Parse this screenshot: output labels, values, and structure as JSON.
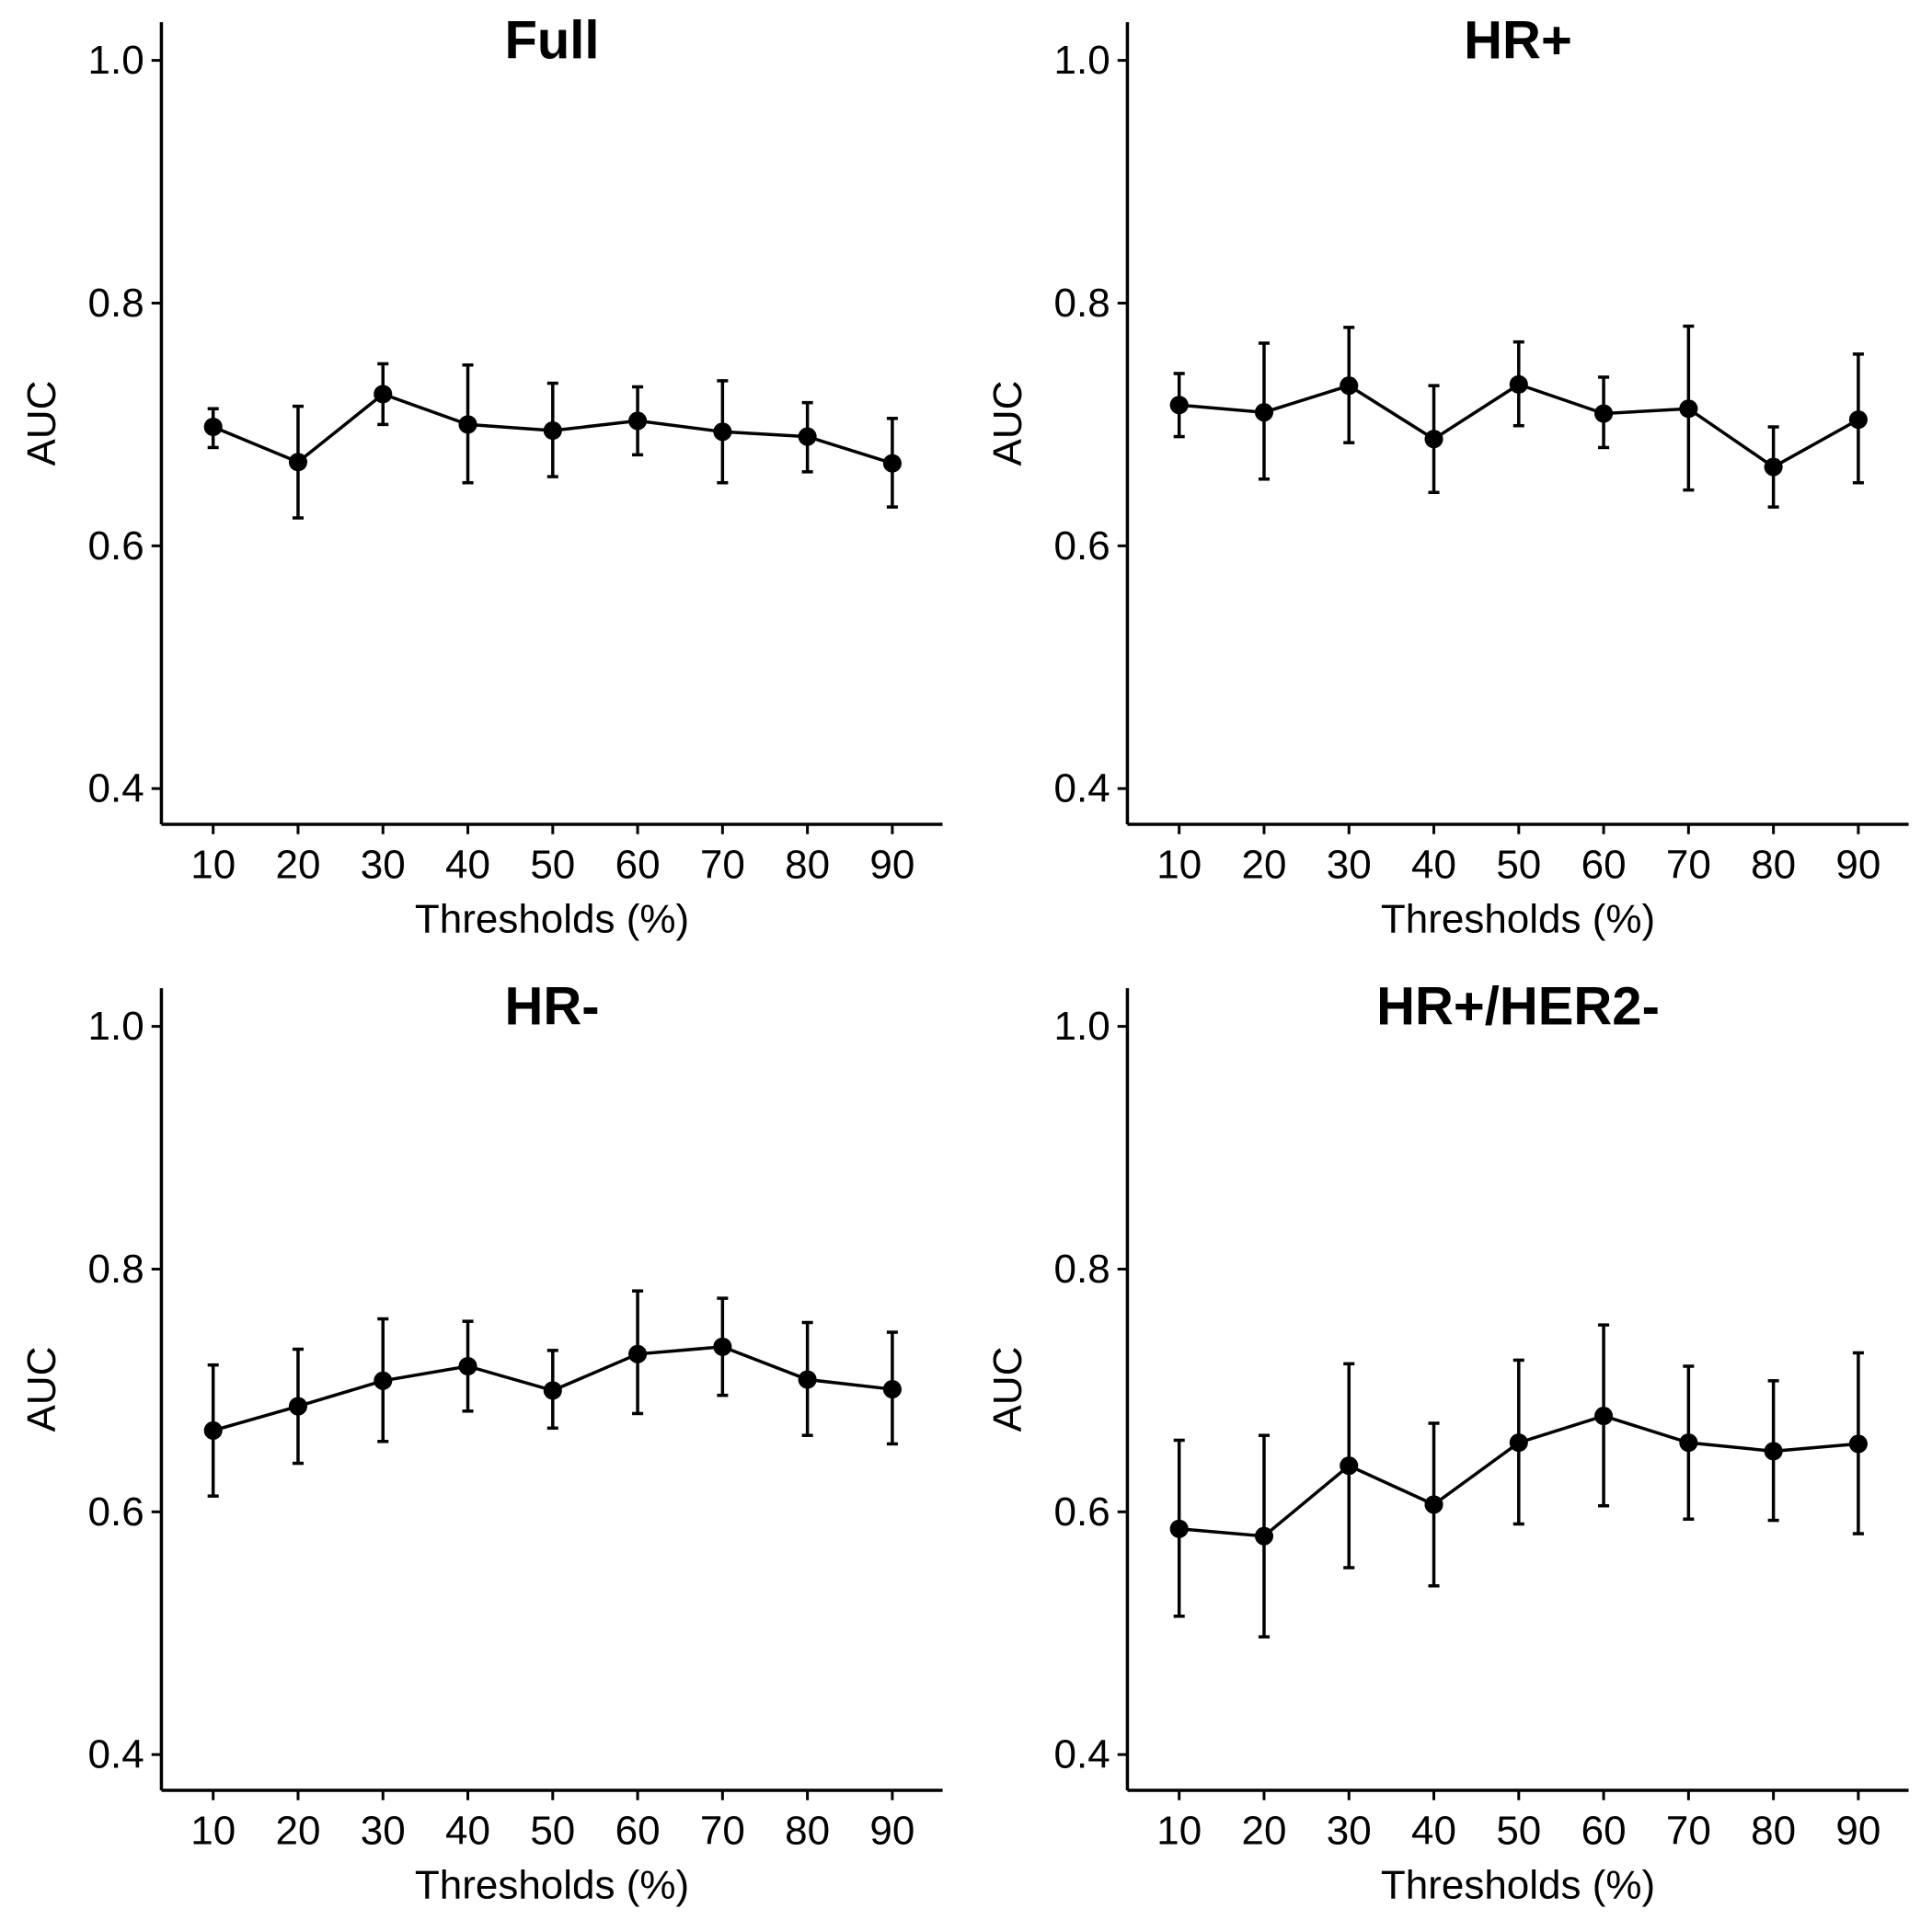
{
  "chart_data": [
    {
      "type": "line",
      "title": "Full",
      "xlabel": "Thresholds (%)",
      "ylabel": "AUC",
      "ylim": [
        0.4,
        1.0
      ],
      "yticks": [
        "0.4",
        "0.6",
        "0.8",
        "1.0"
      ],
      "categories": [
        "10",
        "20",
        "30",
        "40",
        "50",
        "60",
        "70",
        "80",
        "90"
      ],
      "values": [
        0.698,
        0.669,
        0.725,
        0.7,
        0.695,
        0.703,
        0.694,
        0.69,
        0.668
      ],
      "lower": [
        0.681,
        0.623,
        0.7,
        0.652,
        0.657,
        0.675,
        0.652,
        0.661,
        0.632
      ],
      "upper": [
        0.713,
        0.715,
        0.75,
        0.749,
        0.734,
        0.731,
        0.736,
        0.718,
        0.705
      ]
    },
    {
      "type": "line",
      "title": "HR+",
      "xlabel": "Thresholds (%)",
      "ylabel": "AUC",
      "ylim": [
        0.4,
        1.0
      ],
      "yticks": [
        "0.4",
        "0.6",
        "0.8",
        "1.0"
      ],
      "categories": [
        "10",
        "20",
        "30",
        "40",
        "50",
        "60",
        "70",
        "80",
        "90"
      ],
      "values": [
        0.716,
        0.71,
        0.732,
        0.688,
        0.733,
        0.709,
        0.713,
        0.665,
        0.704
      ],
      "lower": [
        0.69,
        0.655,
        0.685,
        0.644,
        0.699,
        0.681,
        0.646,
        0.632,
        0.652
      ],
      "upper": [
        0.742,
        0.767,
        0.78,
        0.732,
        0.768,
        0.739,
        0.781,
        0.698,
        0.758
      ]
    },
    {
      "type": "line",
      "title": "HR-",
      "xlabel": "Thresholds (%)",
      "ylabel": "AUC",
      "ylim": [
        0.4,
        1.0
      ],
      "yticks": [
        "0.4",
        "0.6",
        "0.8",
        "1.0"
      ],
      "categories": [
        "10",
        "20",
        "30",
        "40",
        "50",
        "60",
        "70",
        "80",
        "90"
      ],
      "values": [
        0.667,
        0.687,
        0.708,
        0.72,
        0.7,
        0.73,
        0.736,
        0.709,
        0.701
      ],
      "lower": [
        0.613,
        0.64,
        0.658,
        0.683,
        0.669,
        0.681,
        0.696,
        0.663,
        0.656
      ],
      "upper": [
        0.721,
        0.734,
        0.759,
        0.757,
        0.733,
        0.782,
        0.776,
        0.756,
        0.748
      ]
    },
    {
      "type": "line",
      "title": "HR+/HER2-",
      "xlabel": "Thresholds (%)",
      "ylabel": "AUC",
      "ylim": [
        0.4,
        1.0
      ],
      "yticks": [
        "0.4",
        "0.6",
        "0.8",
        "1.0"
      ],
      "categories": [
        "10",
        "20",
        "30",
        "40",
        "50",
        "60",
        "70",
        "80",
        "90"
      ],
      "values": [
        0.586,
        0.58,
        0.638,
        0.606,
        0.657,
        0.679,
        0.657,
        0.65,
        0.656
      ],
      "lower": [
        0.514,
        0.497,
        0.554,
        0.539,
        0.59,
        0.605,
        0.594,
        0.593,
        0.582
      ],
      "upper": [
        0.659,
        0.663,
        0.722,
        0.673,
        0.725,
        0.754,
        0.72,
        0.708,
        0.731
      ]
    }
  ]
}
